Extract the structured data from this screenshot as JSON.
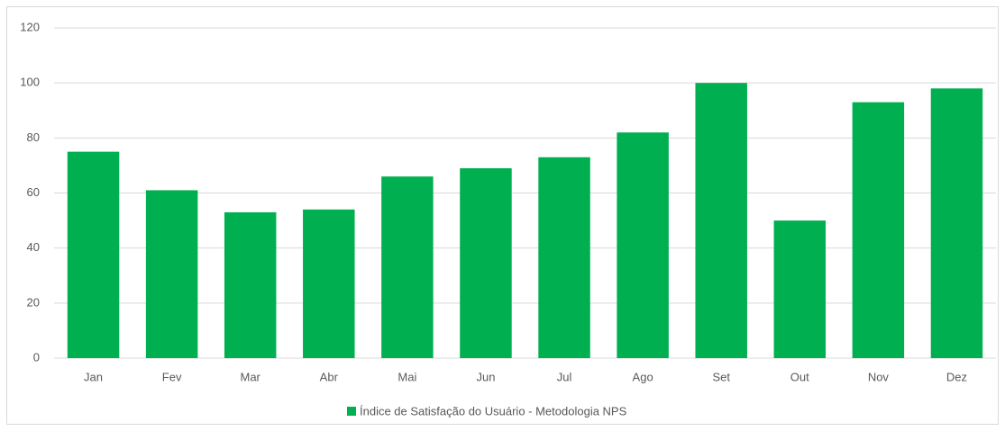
{
  "chart_data": {
    "type": "bar",
    "categories": [
      "Jan",
      "Fev",
      "Mar",
      "Abr",
      "Mai",
      "Jun",
      "Jul",
      "Ago",
      "Set",
      "Out",
      "Nov",
      "Dez"
    ],
    "series": [
      {
        "name": "Índice de Satisfação do Usuário - Metodologia NPS",
        "color": "#00b050",
        "values": [
          75,
          61,
          53,
          54,
          66,
          69,
          73,
          82,
          100,
          50,
          93,
          98
        ]
      }
    ],
    "ylim": [
      0,
      120
    ],
    "yticks": [
      0,
      20,
      40,
      60,
      80,
      100,
      120
    ],
    "grid": true,
    "legend": "bottom"
  }
}
